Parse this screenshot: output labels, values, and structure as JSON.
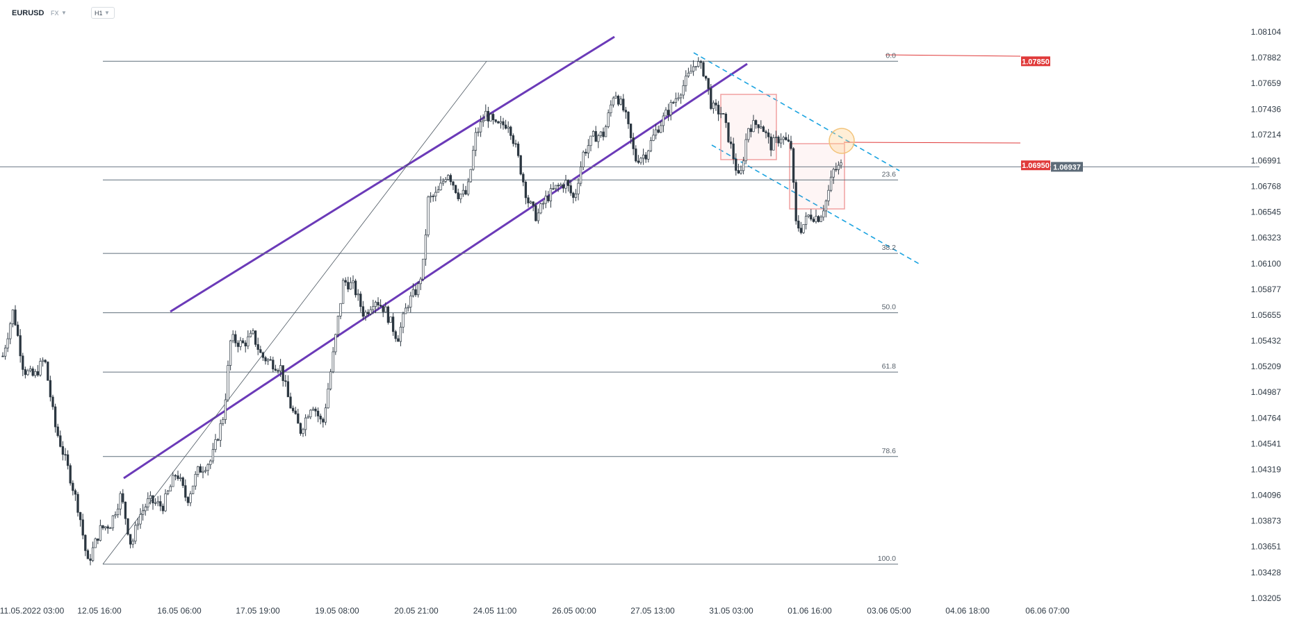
{
  "header": {
    "symbol": "EURUSD",
    "symbol_type": "FX",
    "timeframe": "H1"
  },
  "chart_data": {
    "type": "candlestick",
    "instrument": "EURUSD",
    "timeframe": "H1",
    "y_ticks": [
      "1.08104",
      "1.07882",
      "1.07659",
      "1.07436",
      "1.07214",
      "1.06991",
      "1.06768",
      "1.06545",
      "1.06323",
      "1.06100",
      "1.05877",
      "1.05655",
      "1.05432",
      "1.05209",
      "1.04987",
      "1.04764",
      "1.04541",
      "1.04319",
      "1.04096",
      "1.03873",
      "1.03651",
      "1.03428",
      "1.03205"
    ],
    "ylim": [
      1.03205,
      1.08104
    ],
    "x_ticks": [
      "11.05.2022  03:00",
      "12.05  16:00",
      "16.05  06:00",
      "17.05  19:00",
      "19.05  08:00",
      "20.05  21:00",
      "24.05  11:00",
      "26.05  00:00",
      "27.05  13:00",
      "31.05  03:00",
      "01.06  16:00",
      "03.06  05:00",
      "04.06  18:00",
      "06.06  07:00"
    ],
    "price_tags": [
      {
        "label": "1.07850",
        "value": 1.0785,
        "color": "#e03a3a"
      },
      {
        "label": "1.06950",
        "value": 1.0695,
        "color": "#e03a3a"
      },
      {
        "label": "1.06937",
        "value": 1.06937,
        "color": "#5d6b78"
      }
    ],
    "fibonacci": {
      "high": 1.0785,
      "low": 1.035,
      "levels": [
        {
          "label": "0.0",
          "ratio": 0.0
        },
        {
          "label": "23.6",
          "ratio": 0.236
        },
        {
          "label": "38.2",
          "ratio": 0.382
        },
        {
          "label": "50.0",
          "ratio": 0.5
        },
        {
          "label": "61.8",
          "ratio": 0.618
        },
        {
          "label": "78.6",
          "ratio": 0.786
        },
        {
          "label": "100.0",
          "ratio": 1.0
        }
      ]
    },
    "anchors": [
      {
        "t": 0,
        "p": 1.053
      },
      {
        "t": 15,
        "p": 1.057
      },
      {
        "t": 30,
        "p": 1.0518
      },
      {
        "t": 45,
        "p": 1.0512
      },
      {
        "t": 60,
        "p": 1.0528
      },
      {
        "t": 75,
        "p": 1.047
      },
      {
        "t": 95,
        "p": 1.043
      },
      {
        "t": 110,
        "p": 1.0395
      },
      {
        "t": 122,
        "p": 1.035
      },
      {
        "t": 140,
        "p": 1.038
      },
      {
        "t": 155,
        "p": 1.0385
      },
      {
        "t": 170,
        "p": 1.041
      },
      {
        "t": 185,
        "p": 1.0365
      },
      {
        "t": 195,
        "p": 1.039
      },
      {
        "t": 210,
        "p": 1.0405
      },
      {
        "t": 230,
        "p": 1.04
      },
      {
        "t": 250,
        "p": 1.043
      },
      {
        "t": 265,
        "p": 1.0405
      },
      {
        "t": 280,
        "p": 1.043
      },
      {
        "t": 300,
        "p": 1.044
      },
      {
        "t": 318,
        "p": 1.048
      },
      {
        "t": 328,
        "p": 1.0545
      },
      {
        "t": 345,
        "p": 1.054
      },
      {
        "t": 360,
        "p": 1.0548
      },
      {
        "t": 372,
        "p": 1.053
      },
      {
        "t": 385,
        "p": 1.0525
      },
      {
        "t": 400,
        "p": 1.052
      },
      {
        "t": 412,
        "p": 1.049
      },
      {
        "t": 428,
        "p": 1.0465
      },
      {
        "t": 445,
        "p": 1.049
      },
      {
        "t": 460,
        "p": 1.047
      },
      {
        "t": 475,
        "p": 1.053
      },
      {
        "t": 490,
        "p": 1.0595
      },
      {
        "t": 505,
        "p": 1.059
      },
      {
        "t": 520,
        "p": 1.0565
      },
      {
        "t": 535,
        "p": 1.058
      },
      {
        "t": 550,
        "p": 1.057
      },
      {
        "t": 568,
        "p": 1.0545
      },
      {
        "t": 582,
        "p": 1.0575
      },
      {
        "t": 598,
        "p": 1.059
      },
      {
        "t": 605,
        "p": 1.061
      },
      {
        "t": 612,
        "p": 1.0665
      },
      {
        "t": 625,
        "p": 1.067
      },
      {
        "t": 640,
        "p": 1.069
      },
      {
        "t": 655,
        "p": 1.067
      },
      {
        "t": 668,
        "p": 1.067
      },
      {
        "t": 680,
        "p": 1.072
      },
      {
        "t": 695,
        "p": 1.074
      },
      {
        "t": 710,
        "p": 1.0728
      },
      {
        "t": 728,
        "p": 1.0732
      },
      {
        "t": 740,
        "p": 1.0705
      },
      {
        "t": 755,
        "p": 1.0665
      },
      {
        "t": 768,
        "p": 1.065
      },
      {
        "t": 780,
        "p": 1.0665
      },
      {
        "t": 795,
        "p": 1.0675
      },
      {
        "t": 810,
        "p": 1.068
      },
      {
        "t": 822,
        "p": 1.0665
      },
      {
        "t": 835,
        "p": 1.0705
      },
      {
        "t": 850,
        "p": 1.072
      },
      {
        "t": 865,
        "p": 1.0722
      },
      {
        "t": 880,
        "p": 1.076
      },
      {
        "t": 895,
        "p": 1.074
      },
      {
        "t": 910,
        "p": 1.07
      },
      {
        "t": 925,
        "p": 1.0705
      },
      {
        "t": 940,
        "p": 1.0725
      },
      {
        "t": 955,
        "p": 1.074
      },
      {
        "t": 970,
        "p": 1.0755
      },
      {
        "t": 985,
        "p": 1.077
      },
      {
        "t": 997,
        "p": 1.0785
      },
      {
        "t": 1010,
        "p": 1.0775
      },
      {
        "t": 1020,
        "p": 1.0745
      },
      {
        "t": 1035,
        "p": 1.074
      },
      {
        "t": 1048,
        "p": 1.071
      },
      {
        "t": 1060,
        "p": 1.068
      },
      {
        "t": 1072,
        "p": 1.0728
      },
      {
        "t": 1090,
        "p": 1.0732
      },
      {
        "t": 1105,
        "p": 1.0712
      },
      {
        "t": 1120,
        "p": 1.072
      },
      {
        "t": 1135,
        "p": 1.071
      },
      {
        "t": 1140,
        "p": 1.0645
      },
      {
        "t": 1148,
        "p": 1.064
      },
      {
        "t": 1160,
        "p": 1.0652
      },
      {
        "t": 1175,
        "p": 1.065
      },
      {
        "t": 1185,
        "p": 1.0665
      },
      {
        "t": 1195,
        "p": 1.069
      },
      {
        "t": 1207,
        "p": 1.0695
      }
    ]
  }
}
